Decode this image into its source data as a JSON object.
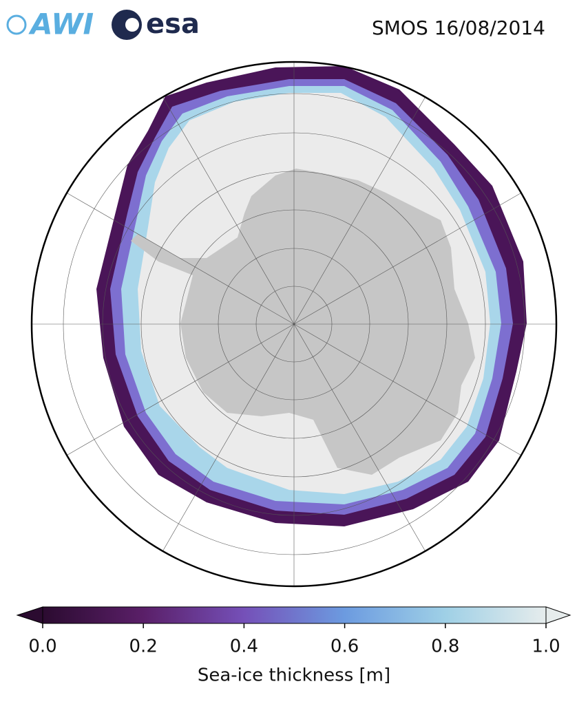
{
  "header": {
    "logos": [
      "AWI",
      "esa"
    ],
    "title": "SMOS 16/08/2014"
  },
  "colorbar": {
    "label": "Sea-ice thickness [m]",
    "lim": [
      0,
      1
    ],
    "ticks": [
      {
        "value": 0,
        "label": "0.0"
      },
      0.2,
      0.4,
      0.6,
      0.8,
      {
        "value": 1,
        "label": "1.0"
      }
    ],
    "colors": [
      "#2b0b30",
      "#5a1f68",
      "#7550b8",
      "#6c9be0",
      "#9fd0e6",
      "#e6ecec"
    ]
  }
}
